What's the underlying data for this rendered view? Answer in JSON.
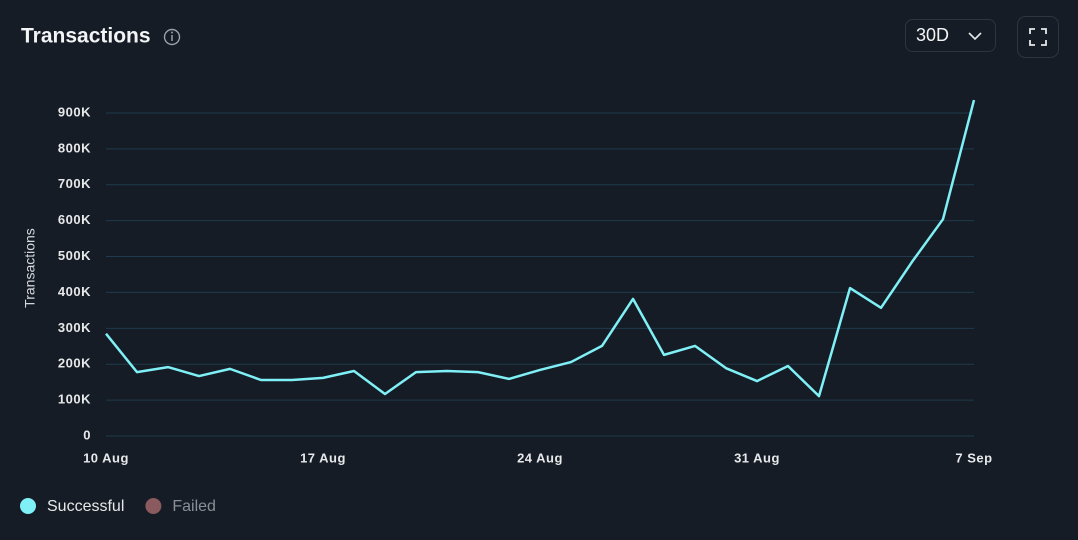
{
  "chart_data": {
    "type": "line",
    "title": "Transactions",
    "period": "30D",
    "y_label": "Transactions",
    "categories": [
      "10 Aug",
      null,
      null,
      null,
      null,
      null,
      null,
      "17 Aug",
      null,
      null,
      null,
      null,
      null,
      null,
      "24 Aug",
      null,
      null,
      null,
      null,
      null,
      null,
      "31 Aug",
      null,
      null,
      null,
      null,
      null,
      null,
      "7 Sep"
    ],
    "series": [
      {
        "name": "Successful",
        "color": "#7ff0f6",
        "values": [
          285000,
          178000,
          192000,
          167000,
          187000,
          156000,
          156000,
          162000,
          181000,
          117000,
          178000,
          181000,
          178000,
          159000,
          184000,
          206000,
          251000,
          382000,
          226000,
          251000,
          189000,
          153000,
          195000,
          111000,
          412000,
          357000,
          485000,
          604000,
          936000
        ]
      },
      {
        "name": "Failed",
        "color": "#8a5a5e",
        "values": [
          null,
          null,
          null,
          null,
          null,
          null,
          null,
          null,
          null,
          null,
          null,
          null,
          null,
          null,
          null,
          null,
          null,
          null,
          null,
          null,
          null,
          null,
          null,
          null,
          null,
          null,
          null,
          null,
          null
        ]
      }
    ],
    "ylim": [
      0,
      950000
    ],
    "yticks": [
      0,
      {
        "value": 100000,
        "label": "100K"
      },
      {
        "value": 200000,
        "label": "200K"
      },
      {
        "value": 300000,
        "label": "300K"
      },
      {
        "value": 400000,
        "label": "400K"
      },
      {
        "value": 500000,
        "label": "500K"
      },
      {
        "value": 600000,
        "label": "600K"
      },
      {
        "value": 700000,
        "label": "700K"
      },
      {
        "value": 800000,
        "label": "800K"
      },
      {
        "value": 900000,
        "label": "900K"
      }
    ],
    "grid": true
  }
}
